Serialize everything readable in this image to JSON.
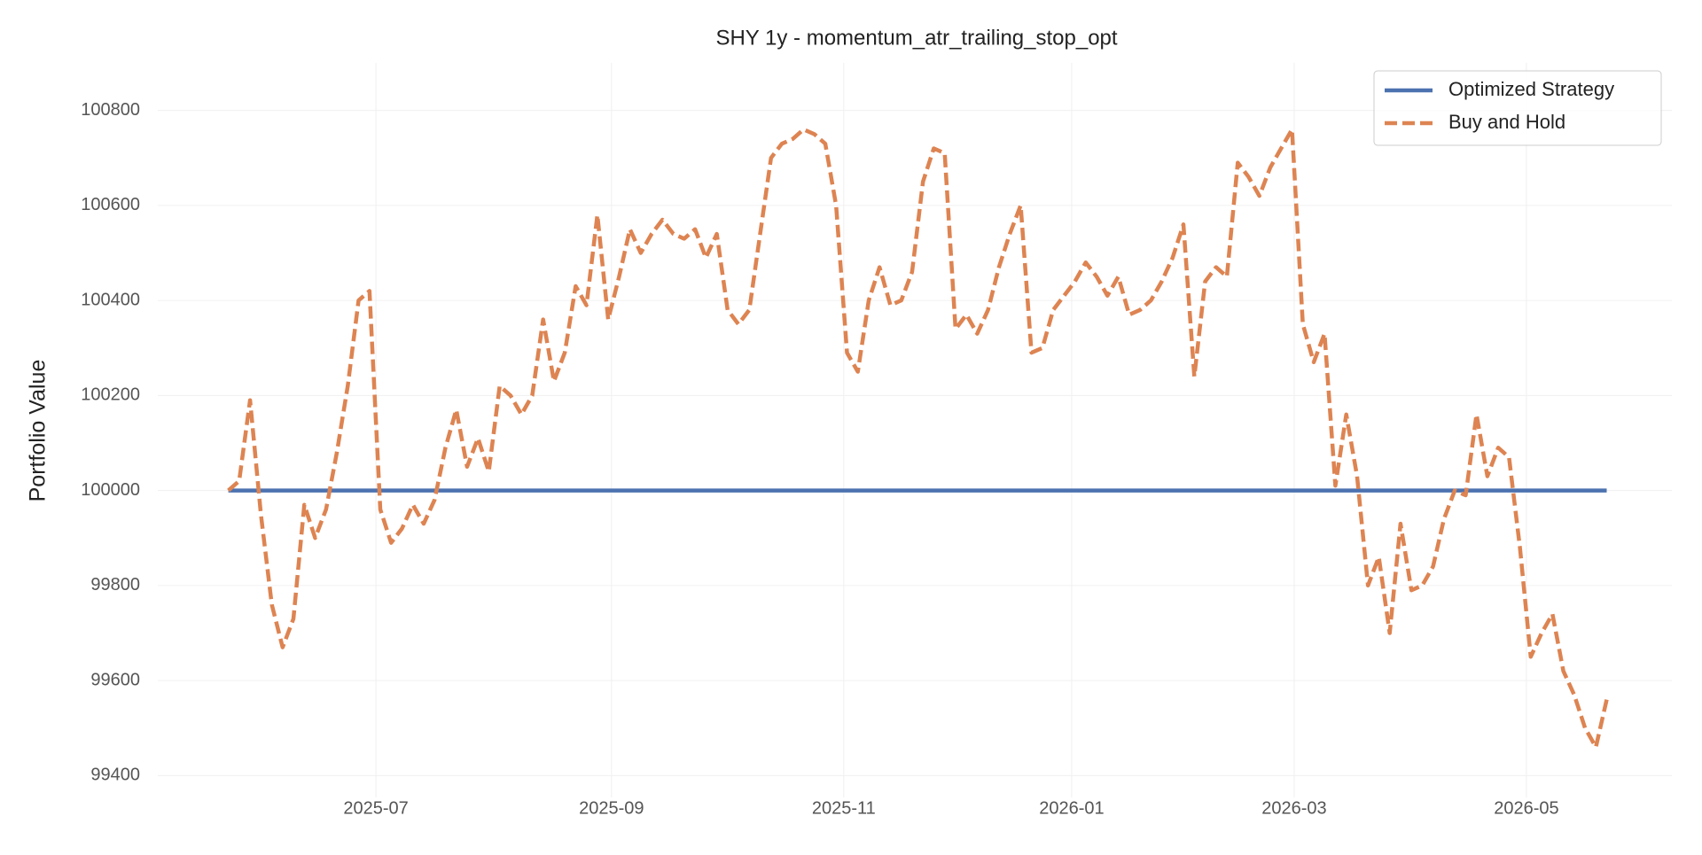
{
  "chart_data": {
    "type": "line",
    "title": "SHY 1y - momentum_atr_trailing_stop_opt",
    "ylabel": "Portfolio Value",
    "xlim": [
      -6.5,
      133
    ],
    "xticks": [
      {
        "value": 13.6,
        "label": "2025-07"
      },
      {
        "value": 35.3,
        "label": "2025-09"
      },
      {
        "value": 56.7,
        "label": "2025-11"
      },
      {
        "value": 77.7,
        "label": "2026-01"
      },
      {
        "value": 98.2,
        "label": "2026-03"
      },
      {
        "value": 119.6,
        "label": "2026-05"
      }
    ],
    "ylim": [
      99354,
      100900
    ],
    "yticks": [
      99400,
      99600,
      99800,
      100000,
      100200,
      100400,
      100600,
      100800
    ],
    "grid": true,
    "legend": "upper right",
    "series": [
      {
        "name": "Optimized Strategy",
        "color": "#4c72b0",
        "dash": "solid",
        "values": [
          100000,
          100000,
          100000,
          100000,
          100000,
          100000,
          100000,
          100000,
          100000,
          100000,
          100000,
          100000,
          100000,
          100000,
          100000,
          100000,
          100000,
          100000,
          100000,
          100000,
          100000,
          100000,
          100000,
          100000,
          100000,
          100000,
          100000,
          100000,
          100000,
          100000,
          100000,
          100000,
          100000,
          100000,
          100000,
          100000,
          100000,
          100000,
          100000,
          100000,
          100000,
          100000,
          100000,
          100000,
          100000,
          100000,
          100000,
          100000,
          100000,
          100000,
          100000,
          100000,
          100000,
          100000,
          100000,
          100000,
          100000,
          100000,
          100000,
          100000,
          100000,
          100000,
          100000,
          100000,
          100000,
          100000,
          100000,
          100000,
          100000,
          100000,
          100000,
          100000,
          100000,
          100000,
          100000,
          100000,
          100000,
          100000,
          100000,
          100000,
          100000,
          100000,
          100000,
          100000,
          100000,
          100000,
          100000,
          100000,
          100000,
          100000,
          100000,
          100000,
          100000,
          100000,
          100000,
          100000,
          100000,
          100000,
          100000,
          100000,
          100000,
          100000,
          100000,
          100000,
          100000,
          100000,
          100000,
          100000,
          100000,
          100000,
          100000,
          100000,
          100000,
          100000,
          100000,
          100000,
          100000,
          100000,
          100000,
          100000,
          100000,
          100000,
          100000,
          100000,
          100000,
          100000,
          100000,
          100000
        ]
      },
      {
        "name": "Buy and Hold",
        "color": "#dd8452",
        "dash": "dashed",
        "values": [
          100000,
          100020,
          100190,
          99950,
          99760,
          99670,
          99730,
          99970,
          99900,
          99960,
          100080,
          100220,
          100400,
          100420,
          99960,
          99890,
          99920,
          99970,
          99930,
          99980,
          100090,
          100170,
          100050,
          100110,
          100040,
          100220,
          100200,
          100160,
          100200,
          100360,
          100230,
          100290,
          100430,
          100390,
          100580,
          100360,
          100450,
          100550,
          100500,
          100540,
          100570,
          100540,
          100530,
          100550,
          100490,
          100540,
          100380,
          100350,
          100380,
          100540,
          100700,
          100730,
          100740,
          100760,
          100750,
          100730,
          100600,
          100290,
          100250,
          100400,
          100470,
          100390,
          100400,
          100460,
          100650,
          100720,
          100710,
          100340,
          100370,
          100330,
          100380,
          100470,
          100540,
          100600,
          100290,
          100300,
          100380,
          100410,
          100440,
          100480,
          100450,
          100410,
          100450,
          100370,
          100380,
          100400,
          100440,
          100490,
          100560,
          100240,
          100440,
          100470,
          100450,
          100690,
          100660,
          100620,
          100680,
          100720,
          100760,
          100350,
          100270,
          100330,
          100010,
          100160,
          100030,
          99800,
          99860,
          99700,
          99930,
          99790,
          99800,
          99840,
          99940,
          100000,
          99990,
          100160,
          100030,
          100090,
          100070,
          99880,
          99650,
          99700,
          99740,
          99620,
          99570,
          99500,
          99460,
          99560
        ]
      }
    ]
  }
}
